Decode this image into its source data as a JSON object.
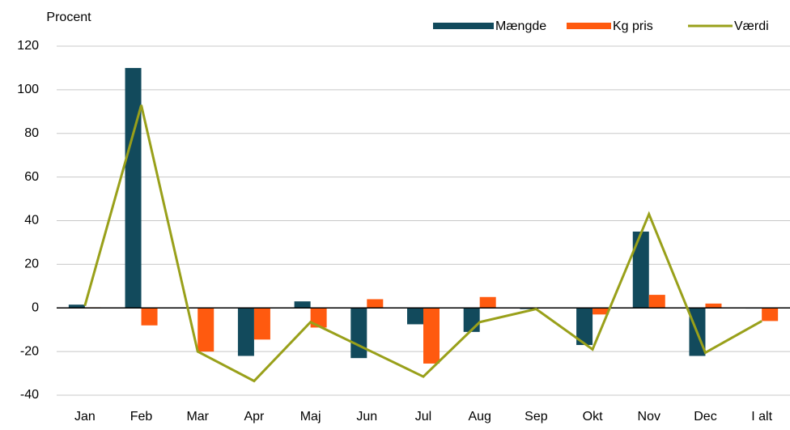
{
  "chart_data": {
    "type": "bar_line",
    "y_label": "Procent",
    "categories": [
      "Jan",
      "Feb",
      "Mar",
      "Apr",
      "Maj",
      "Jun",
      "Jul",
      "Aug",
      "Sep",
      "Okt",
      "Nov",
      "Dec",
      "I alt"
    ],
    "series": [
      {
        "name": "Mængde",
        "type": "bar",
        "color": "#124a5c",
        "values": [
          1.5,
          110,
          0,
          -22,
          3,
          -23,
          -7.5,
          -11,
          -0.5,
          -17,
          35,
          -22,
          -0.3
        ]
      },
      {
        "name": "Kg pris",
        "type": "bar",
        "color": "#ff5a0f",
        "values": [
          0.3,
          -8,
          -20,
          -14.5,
          -9,
          4,
          -25.5,
          5,
          0,
          -3,
          6,
          2,
          -6
        ]
      },
      {
        "name": "Værdi",
        "type": "line",
        "color": "#99a01a",
        "values": [
          1,
          93,
          -20,
          -33.5,
          -6.5,
          -19,
          -31.5,
          -6.5,
          -0.5,
          -19,
          43,
          -20.5,
          -6
        ]
      }
    ],
    "ylim": [
      -40,
      120
    ],
    "yticks": [
      -40,
      -20,
      0,
      20,
      40,
      60,
      80,
      100,
      120
    ],
    "grid": true,
    "legend": "top-right"
  }
}
